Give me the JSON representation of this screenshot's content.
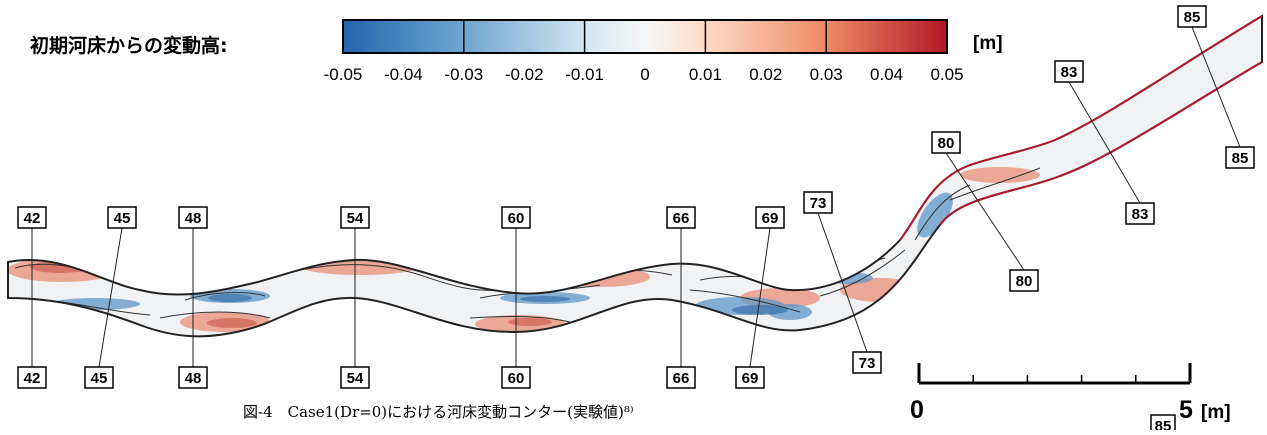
{
  "legend": {
    "title": "初期河床からの変動高:",
    "unit": "[m]",
    "ticks": [
      "-0.05",
      "-0.04",
      "-0.03",
      "-0.02",
      "-0.01",
      "0",
      "0.01",
      "0.02",
      "0.03",
      "0.04",
      "0.05"
    ],
    "range": [
      -0.05,
      0.05
    ],
    "color_low": "#2166ac",
    "color_mid": "#f7f7f7",
    "color_high": "#b2182b"
  },
  "sections": {
    "top": [
      "42",
      "45",
      "48",
      "54",
      "60",
      "66",
      "69",
      "73",
      "80",
      "83",
      "85"
    ],
    "bottom": [
      "42",
      "45",
      "48",
      "54",
      "60",
      "66",
      "69",
      "73",
      "80",
      "83",
      "85"
    ]
  },
  "scale_bar": {
    "start": "0",
    "end": "5",
    "unit": "[m]",
    "stray_label": "85"
  },
  "caption": "図-4　Case1(Dr=0)における河床変動コンター(実験値)⁸⁾"
}
